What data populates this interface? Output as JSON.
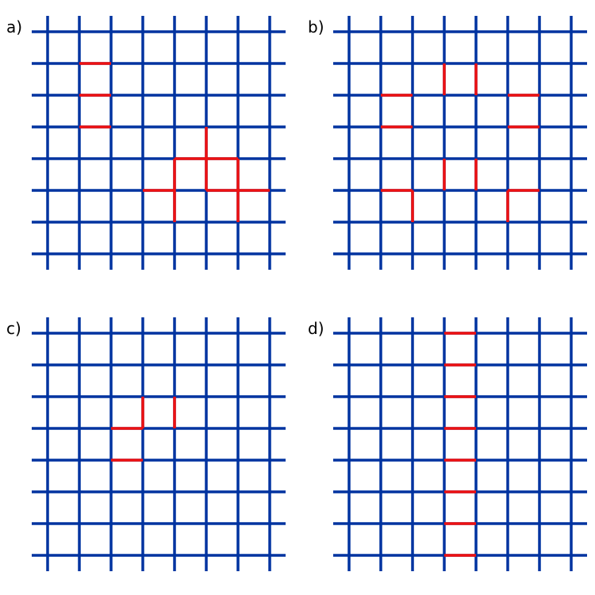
{
  "colors": {
    "grid": "#0033a0",
    "highlight": "#ee1111"
  },
  "grid_lines_per_direction": 8,
  "panels": [
    {
      "label": "a)",
      "horizontal_segments": [
        [
          1,
          1
        ],
        [
          1,
          2
        ],
        [
          1,
          3
        ],
        [
          4,
          4
        ],
        [
          5,
          4
        ],
        [
          3,
          5
        ],
        [
          5,
          5
        ],
        [
          6,
          5
        ]
      ],
      "vertical_segments": [
        [
          5,
          3
        ],
        [
          5,
          4
        ],
        [
          4,
          4
        ],
        [
          4,
          5
        ],
        [
          6,
          4
        ],
        [
          6,
          5
        ]
      ]
    },
    {
      "label": "b)",
      "horizontal_segments": [
        [
          1,
          2
        ],
        [
          1,
          3
        ],
        [
          5,
          2
        ],
        [
          5,
          3
        ],
        [
          1,
          5
        ],
        [
          5,
          5
        ]
      ],
      "vertical_segments": [
        [
          3,
          1
        ],
        [
          4,
          1
        ],
        [
          3,
          4
        ],
        [
          4,
          4
        ],
        [
          2,
          5
        ],
        [
          5,
          5
        ]
      ]
    },
    {
      "label": "c)",
      "horizontal_segments": [
        [
          2,
          3
        ],
        [
          2,
          4
        ]
      ],
      "vertical_segments": [
        [
          3,
          2
        ],
        [
          4,
          2
        ]
      ]
    },
    {
      "label": "d)",
      "horizontal_segments": [
        [
          3,
          0
        ],
        [
          3,
          1
        ],
        [
          3,
          2
        ],
        [
          3,
          3
        ],
        [
          3,
          4
        ],
        [
          3,
          5
        ],
        [
          3,
          6
        ],
        [
          3,
          7
        ]
      ],
      "vertical_segments": []
    }
  ]
}
